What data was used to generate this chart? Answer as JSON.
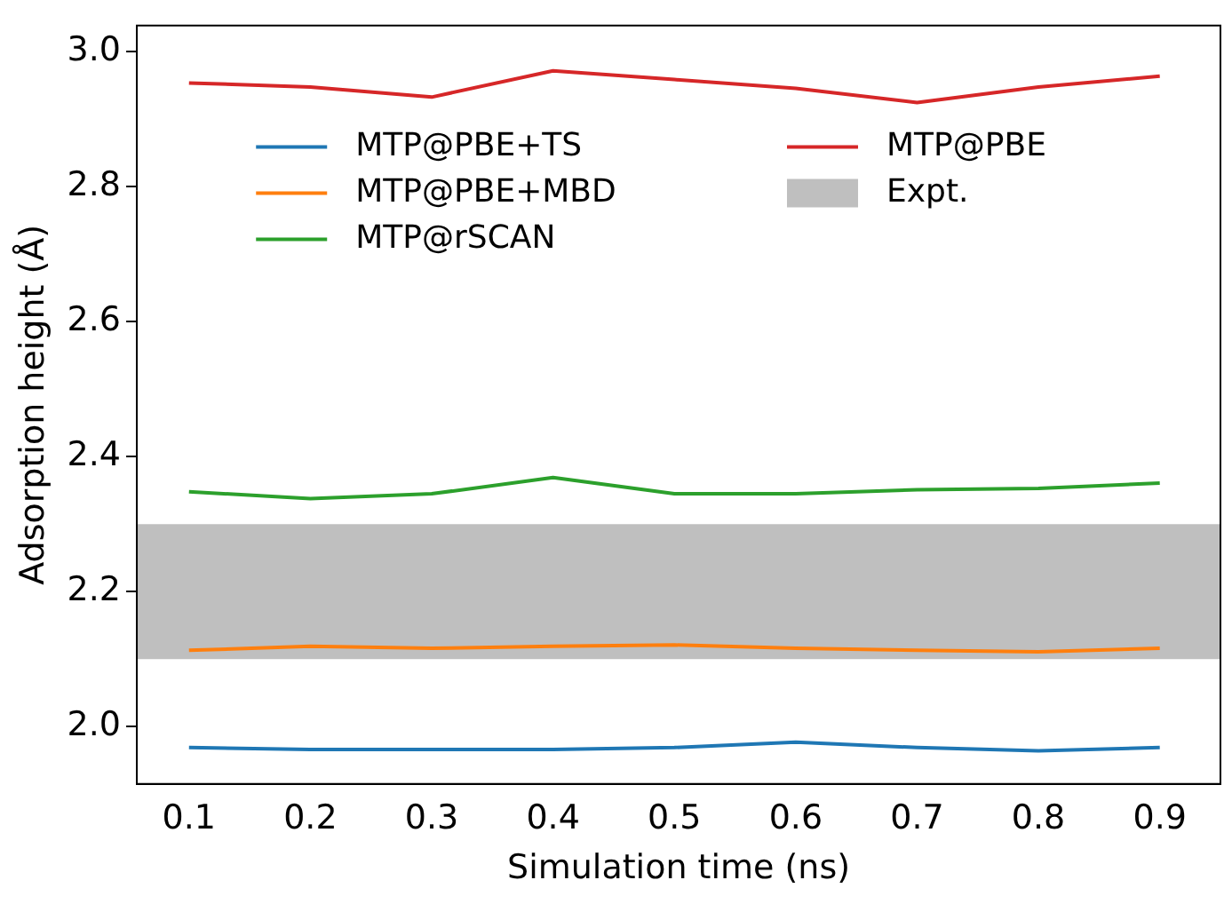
{
  "chart_data": {
    "type": "line",
    "xlabel": "Simulation time (ns)",
    "ylabel": "Adsorption height (Å)",
    "x": [
      0.1,
      0.2,
      0.3,
      0.4,
      0.5,
      0.6,
      0.7,
      0.8,
      0.9
    ],
    "series": [
      {
        "name": "MTP@PBE+TS",
        "color": "#1f77b4",
        "values": [
          1.969,
          1.966,
          1.966,
          1.966,
          1.969,
          1.977,
          1.969,
          1.964,
          1.969
        ]
      },
      {
        "name": "MTP@PBE+MBD",
        "color": "#ff7f0e",
        "values": [
          2.113,
          2.119,
          2.116,
          2.119,
          2.121,
          2.116,
          2.113,
          2.111,
          2.116
        ]
      },
      {
        "name": "MTP@rSCAN",
        "color": "#2ca02c",
        "values": [
          2.348,
          2.338,
          2.345,
          2.369,
          2.345,
          2.345,
          2.351,
          2.353,
          2.361
        ]
      },
      {
        "name": "MTP@PBE",
        "color": "#d62728",
        "values": [
          2.954,
          2.948,
          2.933,
          2.972,
          2.959,
          2.946,
          2.925,
          2.948,
          2.964
        ]
      }
    ],
    "bands": [
      {
        "axis": "y",
        "from": 2.1,
        "to": 2.3,
        "label": "Expt.",
        "color": "#bfbfbf"
      }
    ],
    "xlim": [
      0.057,
      0.95
    ],
    "xticks": [
      0.1,
      0.2,
      0.3,
      0.4,
      0.5,
      0.6,
      0.7,
      0.8,
      0.9
    ],
    "ylim": [
      1.915,
      3.039
    ],
    "yticks": [
      {
        "value": 2,
        "label": "2.0"
      },
      2.2,
      2.4,
      2.6,
      2.8,
      {
        "value": 3,
        "label": "3.0"
      }
    ],
    "legend": "top",
    "marker": "none",
    "line_style": "solid"
  }
}
